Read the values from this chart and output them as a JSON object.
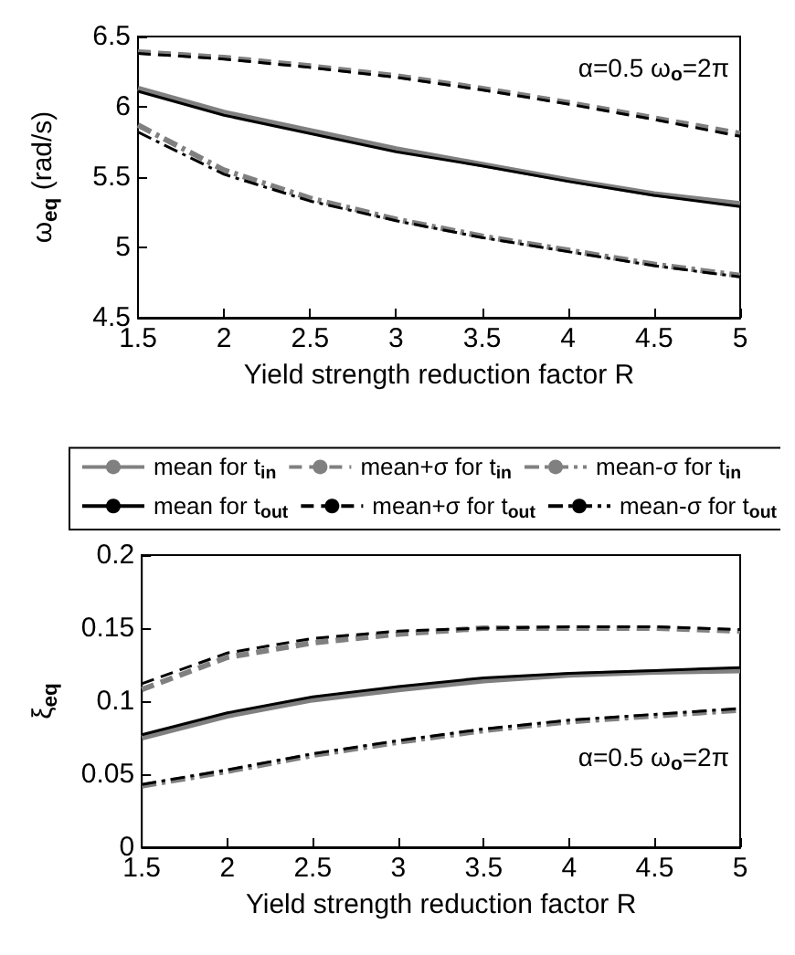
{
  "chart_data": [
    {
      "type": "line",
      "x": [
        1.5,
        2,
        2.5,
        3,
        3.5,
        4,
        4.5,
        5
      ],
      "xlabel": "Yield strength reduction factor R",
      "ylabel": "ω$_{eq}$ (rad/s)",
      "annotations": [
        "α=0.5 ω$_{o}$=2π"
      ],
      "xlim": [
        1.5,
        5
      ],
      "xticks": [
        1.5,
        2,
        2.5,
        3,
        3.5,
        4,
        4.5,
        5
      ],
      "ylim": [
        4.5,
        6.5
      ],
      "yticks": [
        4.5,
        5,
        5.5,
        6,
        6.5
      ],
      "grid": false,
      "legend": "bottom",
      "marker": "none",
      "series": [
        {
          "name": "mean for t$_{in}$",
          "color": "#808080",
          "line_style": "solid",
          "values": [
            6.13,
            5.96,
            5.83,
            5.7,
            5.59,
            5.48,
            5.38,
            5.31
          ]
        },
        {
          "name": "mean+σ for t$_{in}$",
          "color": "#808080",
          "line_style": "dashed",
          "values": [
            6.39,
            6.35,
            6.29,
            6.22,
            6.13,
            6.03,
            5.92,
            5.81
          ]
        },
        {
          "name": "mean-σ for t$_{in}$",
          "color": "#808080",
          "line_style": "dashdot",
          "values": [
            5.87,
            5.55,
            5.35,
            5.2,
            5.08,
            4.98,
            4.88,
            4.8
          ]
        },
        {
          "name": "mean for t$_{out}$",
          "color": "#000000",
          "line_style": "solid",
          "values": [
            6.11,
            5.94,
            5.81,
            5.68,
            5.58,
            5.47,
            5.37,
            5.29
          ]
        },
        {
          "name": "mean+σ for t$_{out}$",
          "color": "#000000",
          "line_style": "dashed",
          "values": [
            6.38,
            6.34,
            6.28,
            6.21,
            6.12,
            6.02,
            5.91,
            5.79
          ]
        },
        {
          "name": "mean-σ for t$_{out}$",
          "color": "#000000",
          "line_style": "dashdot",
          "values": [
            5.82,
            5.52,
            5.33,
            5.19,
            5.07,
            4.97,
            4.87,
            4.79
          ]
        }
      ]
    },
    {
      "type": "line",
      "x": [
        1.5,
        2,
        2.5,
        3,
        3.5,
        4,
        4.5,
        5
      ],
      "xlabel": "Yield strength reduction factor R",
      "ylabel": "ξ$_{eq}$",
      "annotations": [
        "α=0.5 ω$_{o}$=2π"
      ],
      "xlim": [
        1.5,
        5
      ],
      "xticks": [
        1.5,
        2,
        2.5,
        3,
        3.5,
        4,
        4.5,
        5
      ],
      "ylim": [
        0,
        0.2
      ],
      "yticks": [
        0,
        0.05,
        0.1,
        0.15,
        0.2
      ],
      "grid": false,
      "marker": "none",
      "series": [
        {
          "color": "#808080",
          "line_style": "solid",
          "values": [
            0.075,
            0.09,
            0.101,
            0.108,
            0.114,
            0.118,
            0.12,
            0.121
          ]
        },
        {
          "color": "#808080",
          "line_style": "dashed",
          "values": [
            0.108,
            0.13,
            0.14,
            0.146,
            0.15,
            0.15,
            0.15,
            0.148
          ]
        },
        {
          "color": "#808080",
          "line_style": "dashdot",
          "values": [
            0.042,
            0.052,
            0.063,
            0.072,
            0.08,
            0.086,
            0.09,
            0.094
          ]
        },
        {
          "color": "#000000",
          "line_style": "solid",
          "values": [
            0.077,
            0.092,
            0.103,
            0.11,
            0.116,
            0.119,
            0.121,
            0.123
          ]
        },
        {
          "color": "#000000",
          "line_style": "dashed",
          "values": [
            0.112,
            0.133,
            0.143,
            0.148,
            0.15,
            0.151,
            0.151,
            0.149
          ]
        },
        {
          "color": "#000000",
          "line_style": "dashdot",
          "values": [
            0.043,
            0.053,
            0.064,
            0.073,
            0.081,
            0.087,
            0.091,
            0.095
          ]
        }
      ]
    }
  ]
}
